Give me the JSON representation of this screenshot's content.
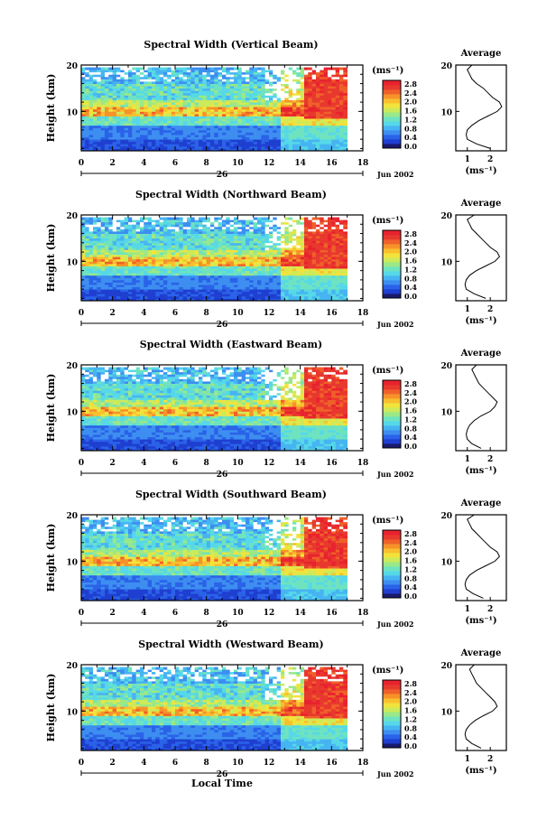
{
  "chart_data": [
    {
      "type": "heatmap",
      "title": "Spectral Width (Vertical Beam)",
      "ylabel": "Height (km)",
      "x_ticks": [
        "0",
        "2",
        "4",
        "6",
        "8",
        "10",
        "12",
        "14",
        "16",
        "18"
      ],
      "y_ticks": [
        "10",
        "20"
      ],
      "xlim": [
        0,
        18
      ],
      "ylim": [
        1.5,
        20
      ],
      "date_label": "26",
      "month_label": "Jun 2002",
      "colorbar": {
        "unit": "(ms⁻¹)",
        "ticks": [
          "2.8",
          "2.4",
          "2.0",
          "1.6",
          "1.2",
          "0.8",
          "0.4",
          "0.0"
        ],
        "range": [
          0.0,
          2.8
        ]
      },
      "average": {
        "title": "Average",
        "y_ticks": [
          "10",
          "20"
        ],
        "x_ticks": [
          "1",
          "2"
        ],
        "xlabel": "(ms⁻¹)",
        "profile": [
          [
            2.0,
            2
          ],
          [
            1.4,
            3
          ],
          [
            1.0,
            4
          ],
          [
            0.95,
            5
          ],
          [
            1.0,
            6
          ],
          [
            1.2,
            7
          ],
          [
            1.5,
            8
          ],
          [
            1.9,
            9
          ],
          [
            2.3,
            10
          ],
          [
            2.5,
            11
          ],
          [
            2.4,
            12
          ],
          [
            2.1,
            13
          ],
          [
            1.9,
            14
          ],
          [
            1.7,
            15
          ],
          [
            1.4,
            16
          ],
          [
            1.2,
            17
          ],
          [
            1.1,
            18
          ],
          [
            1.0,
            19
          ],
          [
            1.2,
            20
          ]
        ]
      }
    },
    {
      "type": "heatmap",
      "title": "Spectral Width (Northward Beam)",
      "ylabel": "Height (km)",
      "x_ticks": [
        "0",
        "2",
        "4",
        "6",
        "8",
        "10",
        "12",
        "14",
        "16",
        "18"
      ],
      "y_ticks": [
        "10",
        "20"
      ],
      "xlim": [
        0,
        18
      ],
      "ylim": [
        1.5,
        20
      ],
      "date_label": "26",
      "month_label": "Jun 2002",
      "colorbar": {
        "unit": "(ms⁻¹)",
        "ticks": [
          "2.8",
          "2.4",
          "2.0",
          "1.6",
          "1.2",
          "0.8",
          "0.4",
          "0.0"
        ],
        "range": [
          0.0,
          2.8
        ]
      },
      "average": {
        "title": "Average",
        "y_ticks": [
          "10",
          "20"
        ],
        "x_ticks": [
          "1",
          "2"
        ],
        "xlabel": "(ms⁻¹)",
        "profile": [
          [
            1.8,
            2
          ],
          [
            1.3,
            3
          ],
          [
            0.95,
            4
          ],
          [
            0.9,
            5
          ],
          [
            0.95,
            6
          ],
          [
            1.1,
            7
          ],
          [
            1.4,
            8
          ],
          [
            1.8,
            9
          ],
          [
            2.2,
            10
          ],
          [
            2.4,
            11
          ],
          [
            2.3,
            12
          ],
          [
            2.0,
            13
          ],
          [
            1.8,
            14
          ],
          [
            1.6,
            15
          ],
          [
            1.4,
            16
          ],
          [
            1.2,
            17
          ],
          [
            1.1,
            18
          ],
          [
            1.0,
            19
          ],
          [
            1.3,
            20
          ]
        ]
      }
    },
    {
      "type": "heatmap",
      "title": "Spectral Width (Eastward Beam)",
      "ylabel": "Height (km)",
      "x_ticks": [
        "0",
        "2",
        "4",
        "6",
        "8",
        "10",
        "12",
        "14",
        "16",
        "18"
      ],
      "y_ticks": [
        "10",
        "20"
      ],
      "xlim": [
        0,
        18
      ],
      "ylim": [
        1.5,
        20
      ],
      "date_label": "26",
      "month_label": "Jun 2002",
      "colorbar": {
        "unit": "(ms⁻¹)",
        "ticks": [
          "2.8",
          "2.4",
          "2.0",
          "1.6",
          "1.2",
          "0.8",
          "0.4",
          "0.0"
        ],
        "range": [
          0.0,
          2.8
        ]
      },
      "average": {
        "title": "Average",
        "y_ticks": [
          "10",
          "20"
        ],
        "x_ticks": [
          "1",
          "2"
        ],
        "xlabel": "(ms⁻¹)",
        "profile": [
          [
            1.6,
            2
          ],
          [
            1.2,
            3
          ],
          [
            1.0,
            4
          ],
          [
            0.95,
            5
          ],
          [
            1.0,
            6
          ],
          [
            1.1,
            7
          ],
          [
            1.3,
            8
          ],
          [
            1.6,
            9
          ],
          [
            2.0,
            10
          ],
          [
            2.2,
            11
          ],
          [
            2.3,
            12
          ],
          [
            2.1,
            13
          ],
          [
            1.9,
            14
          ],
          [
            1.7,
            15
          ],
          [
            1.5,
            16
          ],
          [
            1.4,
            17
          ],
          [
            1.3,
            18
          ],
          [
            1.2,
            19
          ],
          [
            1.4,
            20
          ]
        ]
      }
    },
    {
      "type": "heatmap",
      "title": "Spectral Width (Southward Beam)",
      "ylabel": "Height (km)",
      "x_ticks": [
        "0",
        "2",
        "4",
        "6",
        "8",
        "10",
        "12",
        "14",
        "16",
        "18"
      ],
      "y_ticks": [
        "10",
        "20"
      ],
      "xlim": [
        0,
        18
      ],
      "ylim": [
        1.5,
        20
      ],
      "date_label": "26",
      "month_label": "Jun 2002",
      "colorbar": {
        "unit": "(ms⁻¹)",
        "ticks": [
          "2.8",
          "2.4",
          "2.0",
          "1.6",
          "1.2",
          "0.8",
          "0.4",
          "0.0"
        ],
        "range": [
          0.0,
          2.8
        ]
      },
      "average": {
        "title": "Average",
        "y_ticks": [
          "10",
          "20"
        ],
        "x_ticks": [
          "1",
          "2"
        ],
        "xlabel": "(ms⁻¹)",
        "profile": [
          [
            1.7,
            2
          ],
          [
            1.25,
            3
          ],
          [
            0.95,
            4
          ],
          [
            0.9,
            5
          ],
          [
            0.95,
            6
          ],
          [
            1.1,
            7
          ],
          [
            1.4,
            8
          ],
          [
            1.8,
            9
          ],
          [
            2.2,
            10
          ],
          [
            2.4,
            11
          ],
          [
            2.3,
            12
          ],
          [
            2.0,
            13
          ],
          [
            1.8,
            14
          ],
          [
            1.6,
            15
          ],
          [
            1.4,
            16
          ],
          [
            1.2,
            17
          ],
          [
            1.1,
            18
          ],
          [
            1.0,
            19
          ],
          [
            1.3,
            20
          ]
        ]
      }
    },
    {
      "type": "heatmap",
      "title": "Spectral Width (Westward Beam)",
      "ylabel": "Height (km)",
      "xlabel": "Local Time",
      "x_ticks": [
        "0",
        "2",
        "4",
        "6",
        "8",
        "10",
        "12",
        "14",
        "16",
        "18"
      ],
      "y_ticks": [
        "10",
        "20"
      ],
      "xlim": [
        0,
        18
      ],
      "ylim": [
        1.5,
        20
      ],
      "date_label": "26",
      "month_label": "Jun 2002",
      "colorbar": {
        "unit": "(ms⁻¹)",
        "ticks": [
          "2.8",
          "2.4",
          "2.0",
          "1.6",
          "1.2",
          "0.8",
          "0.4",
          "0.0"
        ],
        "range": [
          0.0,
          2.8
        ]
      },
      "average": {
        "title": "Average",
        "y_ticks": [
          "10",
          "20"
        ],
        "x_ticks": [
          "1",
          "2"
        ],
        "xlabel": "(ms⁻¹)",
        "profile": [
          [
            1.6,
            2
          ],
          [
            1.2,
            3
          ],
          [
            0.95,
            4
          ],
          [
            0.9,
            5
          ],
          [
            0.95,
            6
          ],
          [
            1.1,
            7
          ],
          [
            1.35,
            8
          ],
          [
            1.7,
            9
          ],
          [
            2.1,
            10
          ],
          [
            2.3,
            11
          ],
          [
            2.2,
            12
          ],
          [
            2.0,
            13
          ],
          [
            1.8,
            14
          ],
          [
            1.6,
            15
          ],
          [
            1.4,
            16
          ],
          [
            1.3,
            17
          ],
          [
            1.2,
            18
          ],
          [
            1.1,
            19
          ],
          [
            1.3,
            20
          ]
        ]
      }
    }
  ]
}
